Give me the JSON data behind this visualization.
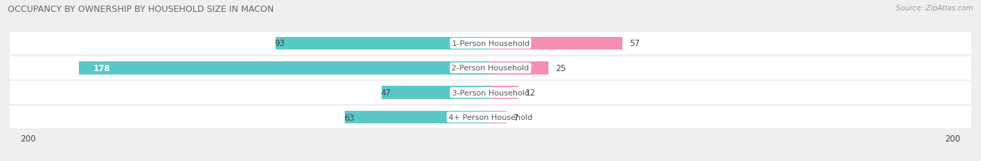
{
  "title": "OCCUPANCY BY OWNERSHIP BY HOUSEHOLD SIZE IN MACON",
  "source": "Source: ZipAtlas.com",
  "categories": [
    "1-Person Household",
    "2-Person Household",
    "3-Person Household",
    "4+ Person Household"
  ],
  "owner_values": [
    93,
    178,
    47,
    63
  ],
  "renter_values": [
    57,
    25,
    12,
    7
  ],
  "max_scale": 200,
  "owner_color": "#5bc8c8",
  "renter_color": "#f48fb1",
  "bg_color": "#efefef",
  "row_bg_color": "#ffffff",
  "title_fontsize": 9,
  "source_fontsize": 7.5,
  "bar_label_fontsize": 8.5,
  "axis_label_fontsize": 8.5,
  "legend_fontsize": 8.5,
  "category_fontsize": 8
}
